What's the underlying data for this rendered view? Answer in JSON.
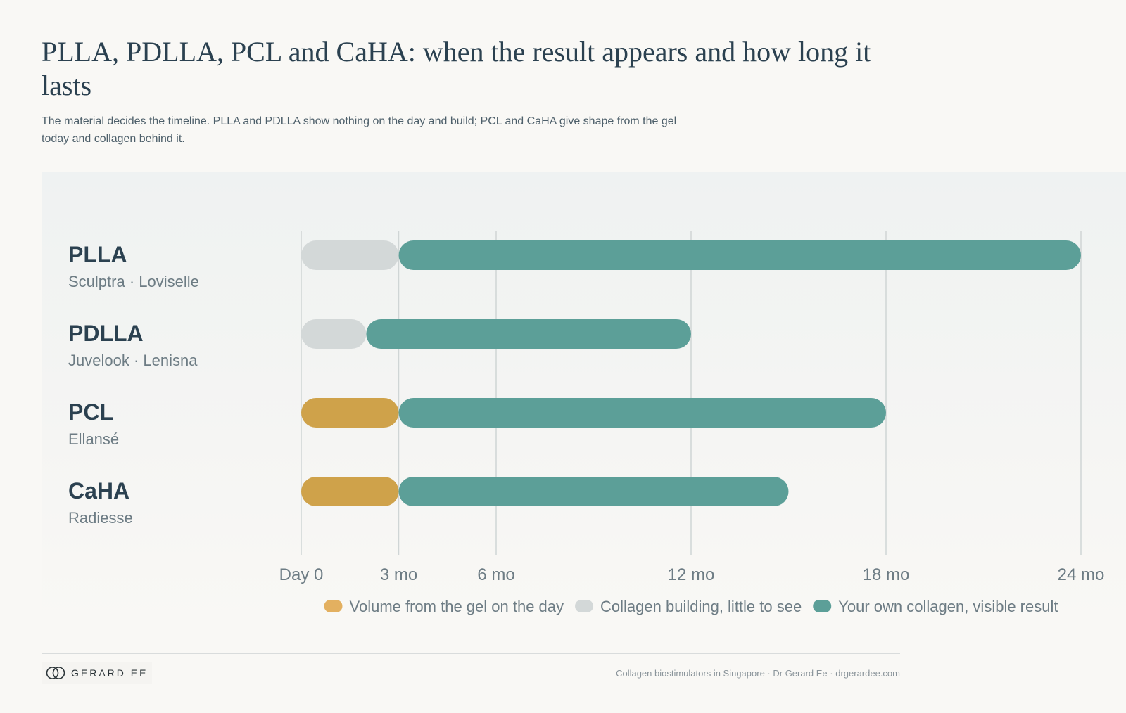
{
  "title": "PLLA, PDLLA, PCL and CaHA: when the result appears and how long it lasts",
  "subtitle": "The material decides the timeline. PLLA and PDLLA show nothing on the day and build; PCL and CaHA give shape from the gel today and collagen behind it.",
  "colors": {
    "gel_volume": "#cfa24a",
    "collagen_building": "#d3d8d8",
    "own_collagen": "#5c9f98",
    "legend_gel_swatch": "#e3b060",
    "text_dark": "#2b4150",
    "text_muted": "#6d7c84"
  },
  "chart_data": {
    "type": "bar",
    "orientation": "horizontal",
    "stacked": true,
    "x_unit": "months",
    "xlim": [
      0,
      24
    ],
    "x_ticks": [
      0,
      3,
      6,
      12,
      18,
      24
    ],
    "x_tick_labels": [
      "Day 0",
      "3 mo",
      "6 mo",
      "12 mo",
      "18 mo",
      "24 mo"
    ],
    "grid": "vertical",
    "legend_position": "bottom",
    "legend": [
      {
        "key": "gel",
        "label": "Volume from the gel on the day"
      },
      {
        "key": "building",
        "label": "Collagen building, little to see"
      },
      {
        "key": "collagen",
        "label": "Your own collagen, visible result"
      }
    ],
    "rows": [
      {
        "name": "PLLA",
        "brands": "Sculptra · Loviselle",
        "segments": [
          {
            "type": "building",
            "start": 0,
            "end": 3
          },
          {
            "type": "collagen",
            "start": 3,
            "end": 24
          }
        ]
      },
      {
        "name": "PDLLA",
        "brands": "Juvelook · Lenisna",
        "segments": [
          {
            "type": "building",
            "start": 0,
            "end": 2
          },
          {
            "type": "collagen",
            "start": 2,
            "end": 12
          }
        ]
      },
      {
        "name": "PCL",
        "brands": "Ellansé",
        "segments": [
          {
            "type": "gel",
            "start": 0,
            "end": 3
          },
          {
            "type": "collagen",
            "start": 3,
            "end": 18
          }
        ]
      },
      {
        "name": "CaHA",
        "brands": "Radiesse",
        "segments": [
          {
            "type": "gel",
            "start": 0,
            "end": 3
          },
          {
            "type": "collagen",
            "start": 3,
            "end": 15
          }
        ]
      }
    ]
  },
  "footer": {
    "brand": "GERARD EE",
    "credit": "Collagen biostimulators in Singapore · Dr Gerard Ee · drgerardee.com"
  }
}
